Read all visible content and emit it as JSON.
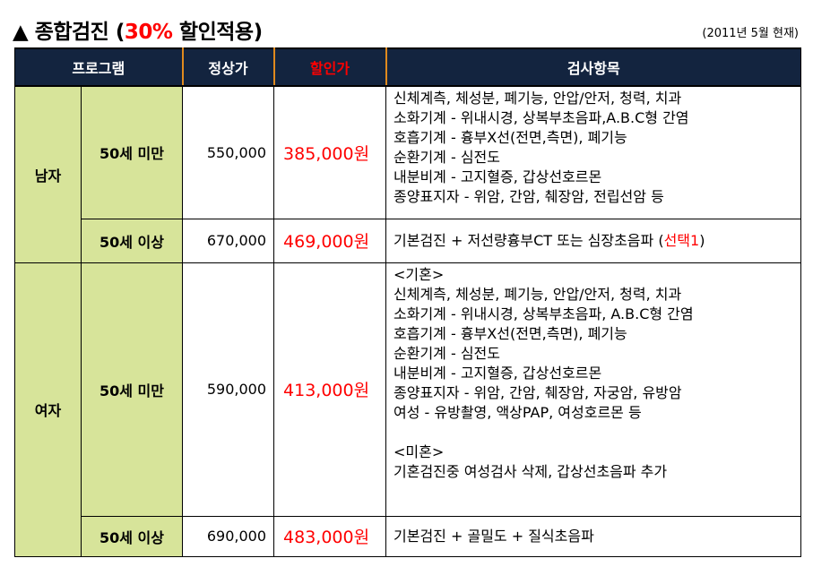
{
  "title": {
    "prefix": "▲ 종합검진 (",
    "highlight": "30%",
    "suffix": " 할인적용)"
  },
  "date_note": "(2011년 5월 현재)",
  "header": {
    "program": "프로그램",
    "regular_price": "정상가",
    "discount_price": "할인가",
    "items": "검사항목"
  },
  "colors": {
    "header_bg": "#13243f",
    "header_divider": "#e08a1e",
    "group_bg": "#d7e49a",
    "accent": "#ff0000"
  },
  "rows": [
    {
      "gender": "남자",
      "age": "50세 미만",
      "price": "550,000",
      "discount": "385,000원",
      "items": [
        "신체계측, 체성분, 폐기능, 안압/안저, 청력, 치과",
        "소화기계 - 위내시경, 상복부초음파,A.B.C형 간염",
        "호흡기계 - 흉부X선(전면,측면), 폐기능",
        "순환기계 - 심전도",
        "내분비계 - 고지혈증, 갑상선호르몬",
        "종양표지자 - 위암, 간암, 췌장암, 전립선암 등"
      ]
    },
    {
      "age": "50세 이상",
      "price": "670,000",
      "discount": "469,000원",
      "items_text": "기본검진 + 저선량흉부CT 또는 심장초음파 (",
      "items_highlight": "선택1",
      "items_close": ")"
    },
    {
      "gender": "여자",
      "age": "50세 미만",
      "price": "590,000",
      "discount": "413,000원",
      "items": [
        "<기혼>",
        "신체계측, 체성분, 폐기능, 안압/안저, 청력, 치과",
        "소화기계 - 위내시경, 상복부초음파, A.B.C형 간염",
        "호흡기계 - 흉부X선(전면,측면), 폐기능",
        "순환기계 - 심전도",
        "내분비계 - 고지혈증, 갑상선호르몬",
        "종양표지자 - 위암, 간암, 췌장암, 자궁암, 유방암",
        "여성 - 유방촬영, 액상PAP, 여성호르몬 등",
        "",
        "<미혼>",
        "기혼검진중 여성검사 삭제, 갑상선초음파 추가"
      ]
    },
    {
      "age": "50세 이상",
      "price": "690,000",
      "discount": "483,000원",
      "items_text": "기본검진 + 골밀도 + 질식초음파"
    }
  ]
}
